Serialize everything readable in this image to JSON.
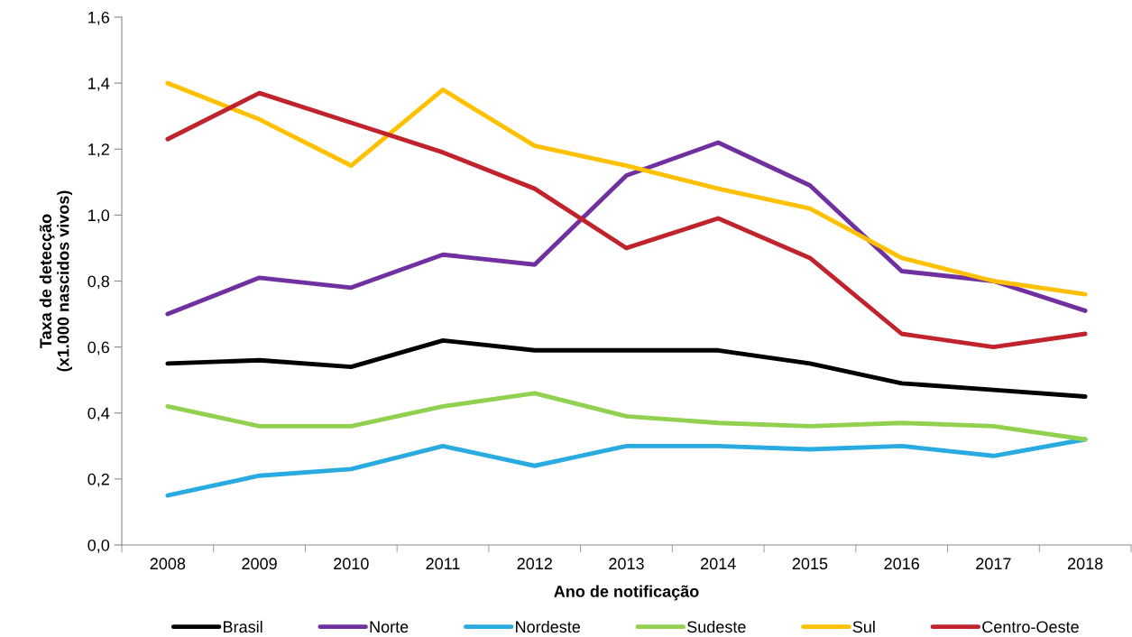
{
  "chart_data": {
    "type": "line",
    "xlabel": "Ano de notificação",
    "ylabel": "Taxa de detecção\n(x1.000 nascidos vivos)",
    "categories": [
      "2008",
      "2009",
      "2010",
      "2011",
      "2012",
      "2013",
      "2014",
      "2015",
      "2016",
      "2017",
      "2018"
    ],
    "series": [
      {
        "name": "Brasil",
        "color": "#000000",
        "values": [
          0.55,
          0.56,
          0.54,
          0.62,
          0.59,
          0.59,
          0.59,
          0.55,
          0.49,
          0.47,
          0.45
        ]
      },
      {
        "name": "Norte",
        "color": "#7030a0",
        "values": [
          0.7,
          0.81,
          0.78,
          0.88,
          0.85,
          1.12,
          1.22,
          1.09,
          0.83,
          0.8,
          0.71
        ]
      },
      {
        "name": "Nordeste",
        "color": "#29abe2",
        "values": [
          0.15,
          0.21,
          0.23,
          0.3,
          0.24,
          0.3,
          0.3,
          0.29,
          0.3,
          0.27,
          0.32
        ]
      },
      {
        "name": "Sudeste",
        "color": "#92d050",
        "values": [
          0.42,
          0.36,
          0.36,
          0.42,
          0.46,
          0.39,
          0.37,
          0.36,
          0.37,
          0.36,
          0.32
        ]
      },
      {
        "name": "Sul",
        "color": "#ffc000",
        "values": [
          1.4,
          1.29,
          1.15,
          1.38,
          1.21,
          1.15,
          1.08,
          1.02,
          0.87,
          0.8,
          0.76
        ]
      },
      {
        "name": "Centro-Oeste",
        "color": "#c0232c",
        "values": [
          1.23,
          1.37,
          1.28,
          1.19,
          1.08,
          0.9,
          0.99,
          0.87,
          0.64,
          0.6,
          0.64
        ]
      }
    ],
    "ylim": [
      0,
      1.6
    ],
    "yticks": [
      {
        "value": 0,
        "label": "0,0"
      },
      {
        "value": 0.2,
        "label": "0,2"
      },
      {
        "value": 0.4,
        "label": "0,4"
      },
      {
        "value": 0.6,
        "label": "0,6"
      },
      {
        "value": 0.8,
        "label": "0,8"
      },
      {
        "value": 1.0,
        "label": "1,0"
      },
      {
        "value": 1.2,
        "label": "1,2"
      },
      {
        "value": 1.4,
        "label": "1,4"
      },
      {
        "value": 1.6,
        "label": "1,6"
      }
    ],
    "grid": false,
    "legend": "bottom",
    "marker": "none",
    "line_style": "solid"
  }
}
